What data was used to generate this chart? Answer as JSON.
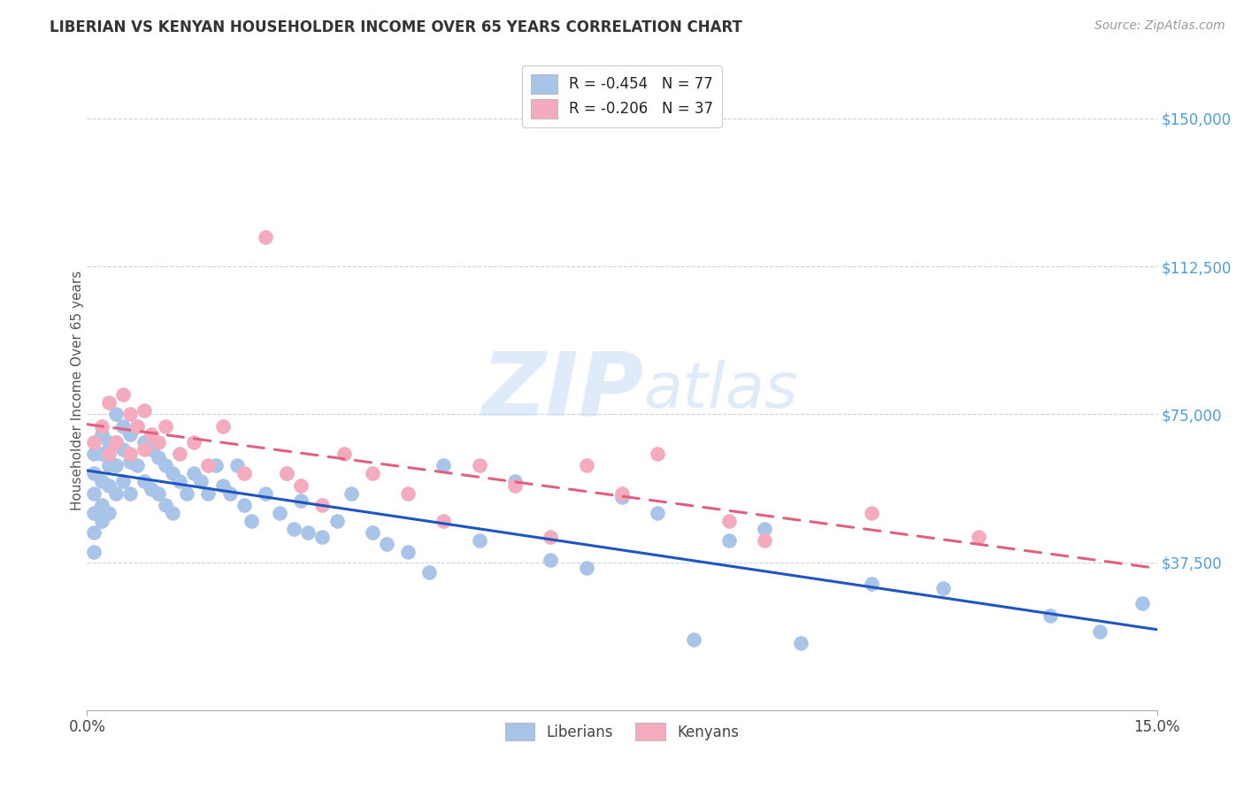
{
  "title": "LIBERIAN VS KENYAN HOUSEHOLDER INCOME OVER 65 YEARS CORRELATION CHART",
  "source": "Source: ZipAtlas.com",
  "ylabel": "Householder Income Over 65 years",
  "xlim": [
    0.0,
    0.15
  ],
  "ylim": [
    0,
    162000
  ],
  "yticks": [
    0,
    37500,
    75000,
    112500,
    150000
  ],
  "liberian_R": "-0.454",
  "liberian_N": "77",
  "kenyan_R": "-0.206",
  "kenyan_N": "37",
  "liberian_color": "#a8c4e8",
  "kenyan_color": "#f4abbe",
  "liberian_line_color": "#2055c0",
  "kenyan_line_color": "#e06080",
  "background_color": "#ffffff",
  "liberian_x": [
    0.001,
    0.001,
    0.001,
    0.001,
    0.001,
    0.001,
    0.002,
    0.002,
    0.002,
    0.002,
    0.002,
    0.003,
    0.003,
    0.003,
    0.003,
    0.004,
    0.004,
    0.004,
    0.004,
    0.005,
    0.005,
    0.005,
    0.006,
    0.006,
    0.006,
    0.007,
    0.007,
    0.008,
    0.008,
    0.009,
    0.009,
    0.01,
    0.01,
    0.011,
    0.011,
    0.012,
    0.012,
    0.013,
    0.014,
    0.015,
    0.016,
    0.017,
    0.018,
    0.019,
    0.02,
    0.021,
    0.022,
    0.023,
    0.025,
    0.027,
    0.028,
    0.029,
    0.03,
    0.031,
    0.033,
    0.035,
    0.037,
    0.04,
    0.042,
    0.045,
    0.048,
    0.05,
    0.055,
    0.06,
    0.065,
    0.07,
    0.075,
    0.08,
    0.085,
    0.09,
    0.095,
    0.1,
    0.11,
    0.12,
    0.135,
    0.142,
    0.148
  ],
  "liberian_y": [
    65000,
    60000,
    55000,
    50000,
    45000,
    40000,
    70000,
    65000,
    58000,
    52000,
    48000,
    68000,
    62000,
    57000,
    50000,
    75000,
    68000,
    62000,
    55000,
    72000,
    66000,
    58000,
    70000,
    63000,
    55000,
    72000,
    62000,
    68000,
    58000,
    66000,
    56000,
    64000,
    55000,
    62000,
    52000,
    60000,
    50000,
    58000,
    55000,
    60000,
    58000,
    55000,
    62000,
    57000,
    55000,
    62000,
    52000,
    48000,
    55000,
    50000,
    60000,
    46000,
    53000,
    45000,
    44000,
    48000,
    55000,
    45000,
    42000,
    40000,
    35000,
    62000,
    43000,
    58000,
    38000,
    36000,
    54000,
    50000,
    18000,
    43000,
    46000,
    17000,
    32000,
    31000,
    24000,
    20000,
    27000
  ],
  "kenyan_x": [
    0.001,
    0.002,
    0.003,
    0.003,
    0.004,
    0.005,
    0.006,
    0.006,
    0.007,
    0.008,
    0.008,
    0.009,
    0.01,
    0.011,
    0.013,
    0.015,
    0.017,
    0.019,
    0.022,
    0.025,
    0.028,
    0.03,
    0.033,
    0.036,
    0.04,
    0.045,
    0.05,
    0.055,
    0.06,
    0.065,
    0.07,
    0.075,
    0.08,
    0.09,
    0.095,
    0.11,
    0.125
  ],
  "kenyan_y": [
    68000,
    72000,
    78000,
    65000,
    68000,
    80000,
    75000,
    65000,
    72000,
    76000,
    66000,
    70000,
    68000,
    72000,
    65000,
    68000,
    62000,
    72000,
    60000,
    120000,
    60000,
    57000,
    52000,
    65000,
    60000,
    55000,
    48000,
    62000,
    57000,
    44000,
    62000,
    55000,
    65000,
    48000,
    43000,
    50000,
    44000
  ]
}
